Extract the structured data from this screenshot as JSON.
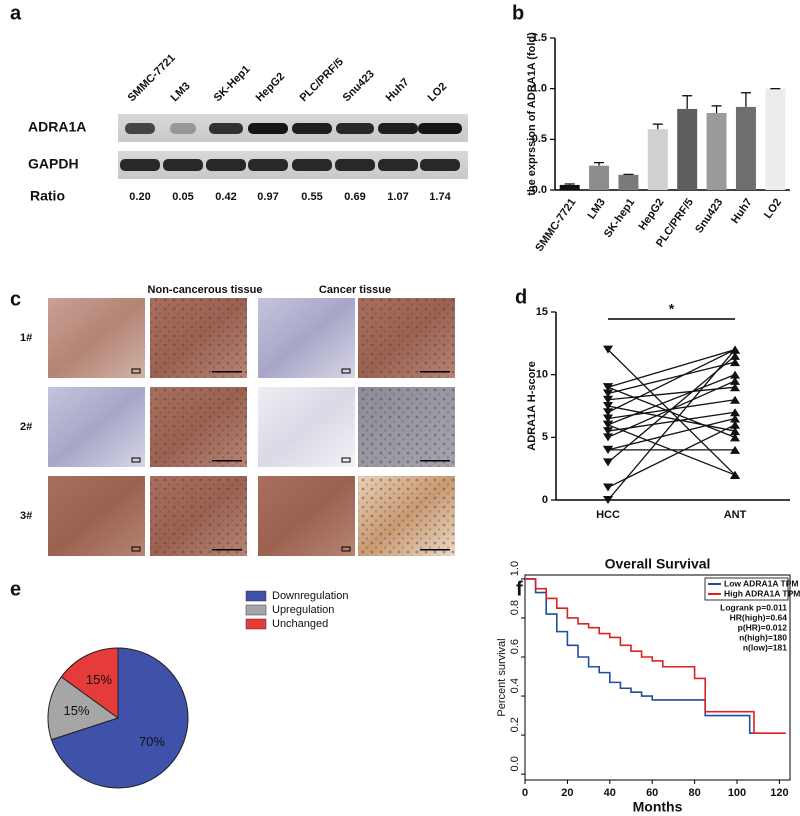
{
  "panel_labels": [
    "a",
    "b",
    "c",
    "d",
    "e",
    "f"
  ],
  "blot": {
    "cell_lines": [
      "SMMC-7721",
      "LM3",
      "SK-Hep1",
      "HepG2",
      "PLC/PRF/5",
      "Snu423",
      "Huh7",
      "LO2"
    ],
    "proteins": [
      "ADRA1A",
      "GAPDH"
    ],
    "ratio_label": "Ratio",
    "ratios": [
      "0.20",
      "0.05",
      "0.42",
      "0.97",
      "0.55",
      "0.69",
      "1.07",
      "1.74"
    ]
  },
  "histology": {
    "column_titles": [
      "Non-cancerous tissue",
      "Cancer tissue"
    ],
    "row_labels": [
      "1#",
      "2#",
      "3#"
    ]
  },
  "chart_data": [
    {
      "type": "bar",
      "ylabel": "the exprssion of ADRA1A (fold)",
      "categories": [
        "SMMC-7721",
        "LM3",
        "SK-hep1",
        "HepG2",
        "PLC/PRF/5",
        "Snu423",
        "Huh7",
        "LO2"
      ],
      "values": [
        0.05,
        0.24,
        0.15,
        0.6,
        0.8,
        0.76,
        0.82,
        1.0
      ],
      "errors": [
        0.01,
        0.03,
        0.005,
        0.05,
        0.13,
        0.07,
        0.14,
        0
      ],
      "colors": [
        "#111111",
        "#8c8c8c",
        "#7a7a7a",
        "#d0d0d0",
        "#5e5e5e",
        "#9a9a9a",
        "#6e6e6e",
        "#ececec"
      ],
      "ylim": [
        0,
        1.5
      ],
      "yticks": [
        {
          "value": 0,
          "label": "0.0"
        },
        {
          "value": 0.5,
          "label": "0.5"
        },
        {
          "value": 1,
          "label": "1.0"
        },
        {
          "value": 1.5,
          "label": "1.5"
        }
      ]
    },
    {
      "type": "paired",
      "ylabel": "ADRA1A H-score",
      "annotation": "*",
      "categories": [
        "HCC",
        "ANT"
      ],
      "values": [
        [
          12,
          2
        ],
        [
          9,
          12
        ],
        [
          9,
          5
        ],
        [
          8.5,
          11
        ],
        [
          8,
          9
        ],
        [
          7,
          12
        ],
        [
          6.5,
          8
        ],
        [
          6,
          10
        ],
        [
          6,
          2
        ],
        [
          5.5,
          7
        ],
        [
          5,
          9.5
        ],
        [
          4,
          6.5
        ],
        [
          4,
          4
        ],
        [
          3,
          11.5
        ],
        [
          1,
          6
        ],
        [
          0,
          12
        ],
        [
          7.5,
          5.5
        ]
      ],
      "color": "#111111",
      "ylim": [
        0,
        15
      ],
      "yticks": [
        0,
        5,
        10,
        15
      ]
    },
    {
      "type": "pie",
      "categories": [
        "Downregulation",
        "Upregulation",
        "Unchanged"
      ],
      "values": [
        70,
        15,
        15
      ],
      "value_labels": [
        "70%",
        "15%",
        "15%"
      ],
      "colors": [
        "#3f51a8",
        "#a6a6a6",
        "#e53b3b"
      ],
      "legend": "right"
    },
    {
      "type": "survival",
      "title": "Overall Survival",
      "xlabel": "Months",
      "ylabel": "Percent survival",
      "series": [
        {
          "name": "Low ADRA1A TPM",
          "color": "#1f4fa0",
          "x": [
            0,
            5,
            10,
            15,
            20,
            25,
            30,
            35,
            40,
            45,
            50,
            55,
            60,
            65,
            70,
            75,
            80,
            85,
            100,
            106,
            110
          ],
          "values": [
            1,
            0.93,
            0.82,
            0.73,
            0.66,
            0.6,
            0.55,
            0.52,
            0.47,
            0.44,
            0.42,
            0.4,
            0.38,
            0.38,
            0.38,
            0.38,
            0.38,
            0.3,
            0.3,
            0.21,
            0.21
          ]
        },
        {
          "name": "High ADRA1A TPM",
          "color": "#d92323",
          "x": [
            0,
            5,
            10,
            15,
            20,
            25,
            30,
            35,
            40,
            45,
            50,
            55,
            60,
            65,
            70,
            75,
            80,
            85,
            90,
            100,
            108,
            123
          ],
          "values": [
            1,
            0.95,
            0.9,
            0.85,
            0.8,
            0.77,
            0.75,
            0.72,
            0.7,
            0.66,
            0.63,
            0.6,
            0.58,
            0.55,
            0.55,
            0.55,
            0.49,
            0.32,
            0.32,
            0.32,
            0.21,
            0.21
          ]
        }
      ],
      "annotations": [
        "Logrank p=0.011",
        "HR(high)=0.64",
        "p(HR)=0.012",
        "n(high)=180",
        "n(low)=181"
      ],
      "legend": "upper right",
      "xlim": [
        0,
        125
      ],
      "xticks": [
        0,
        20,
        40,
        60,
        80,
        100,
        120
      ],
      "ylim": [
        -0.03,
        1.02
      ],
      "yticks": [
        {
          "value": 0,
          "label": "0.0"
        },
        {
          "value": 0.2,
          "label": "0.2"
        },
        {
          "value": 0.4,
          "label": "0.4"
        },
        {
          "value": 0.6,
          "label": "0.6"
        },
        {
          "value": 0.8,
          "label": "0.8"
        },
        {
          "value": 1,
          "label": "1.0"
        }
      ]
    }
  ]
}
